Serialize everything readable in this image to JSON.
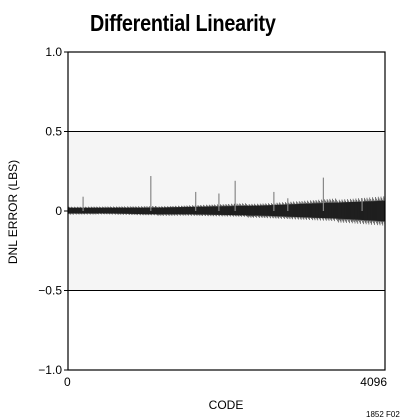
{
  "figure": {
    "title": "Differential Linearity",
    "figure_id": "1852 F02"
  },
  "chart_data": {
    "type": "line",
    "title": "Differential Linearity",
    "xlabel": "CODE",
    "ylabel": "DNL ERROR (LBS)",
    "xlim": [
      0,
      4096
    ],
    "ylim": [
      -1.0,
      1.0
    ],
    "x_ticks": [
      {
        "value": 0,
        "label": "0"
      },
      {
        "value": 4096,
        "label": "4096"
      }
    ],
    "y_ticks": [
      {
        "value": 1.0,
        "label": "1.0"
      },
      {
        "value": 0.5,
        "label": "0.5"
      },
      {
        "value": 0,
        "label": "0"
      },
      {
        "value": -0.5,
        "label": "−0.5"
      },
      {
        "value": -1.0,
        "label": "−1.0"
      }
    ],
    "gridlines_y": [
      0.5,
      -0.5
    ],
    "noise_envelope": {
      "x": [
        0,
        512,
        1024,
        1536,
        2048,
        2560,
        3072,
        3584,
        4096
      ],
      "upper": [
        0.02,
        0.02,
        0.02,
        0.025,
        0.03,
        0.035,
        0.045,
        0.055,
        0.065
      ],
      "lower": [
        -0.015,
        -0.015,
        -0.02,
        -0.02,
        -0.025,
        -0.03,
        -0.04,
        -0.05,
        -0.065
      ]
    },
    "spikes": [
      {
        "x": 195,
        "y": 0.09
      },
      {
        "x": 1070,
        "y": 0.22
      },
      {
        "x": 1650,
        "y": 0.12
      },
      {
        "x": 1950,
        "y": 0.11
      },
      {
        "x": 2160,
        "y": 0.19
      },
      {
        "x": 2660,
        "y": 0.12
      },
      {
        "x": 2840,
        "y": 0.08
      },
      {
        "x": 3300,
        "y": 0.21
      },
      {
        "x": 3800,
        "y": 0.08
      }
    ]
  }
}
